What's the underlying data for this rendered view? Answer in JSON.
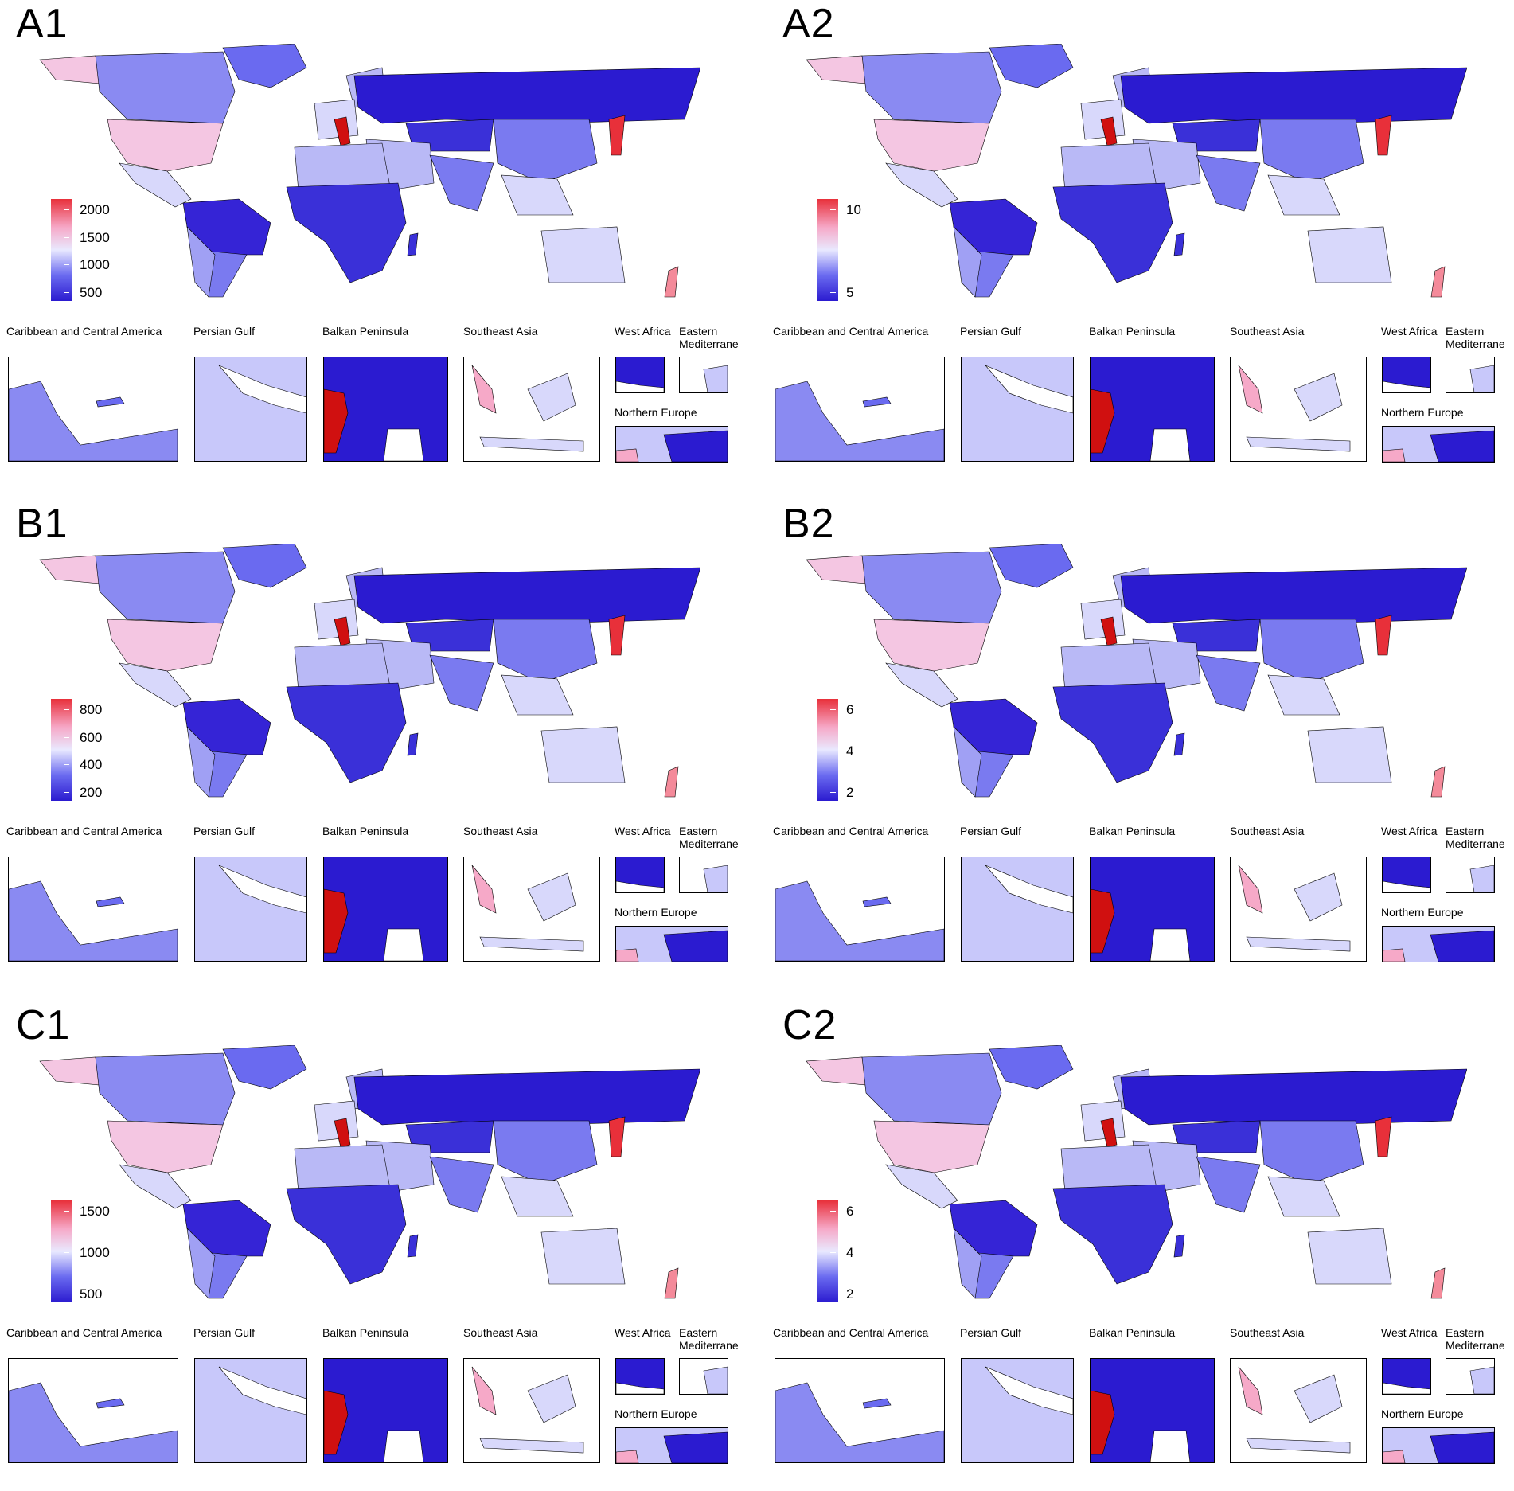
{
  "panels": [
    {
      "label": "A1",
      "ticks": [
        "2000",
        "1500",
        "1000",
        "500"
      ]
    },
    {
      "label": "A2",
      "ticks": [
        "10",
        "5"
      ]
    },
    {
      "label": "B1",
      "ticks": [
        "800",
        "600",
        "400",
        "200"
      ]
    },
    {
      "label": "B2",
      "ticks": [
        "6",
        "4",
        "2"
      ]
    },
    {
      "label": "C1",
      "ticks": [
        "1500",
        "1000",
        "500"
      ]
    },
    {
      "label": "C2",
      "ticks": [
        "6",
        "4",
        "2"
      ]
    }
  ],
  "insets": {
    "caribbean": "Caribbean and Central America",
    "persian_gulf": "Persian Gulf",
    "balkan": "Balkan Peninsula",
    "southeast_asia": "Southeast Asia",
    "west_africa": "West Africa",
    "eastern_med_1": "Eastern",
    "eastern_med_2": "Mediterrane",
    "northern_europe": "Northern Europe"
  },
  "colors": {
    "low": "#2b1bd0",
    "mid_low": "#6a6af0",
    "mid": "#e9e9ff",
    "mid_high": "#f6a9c8",
    "high": "#e8303a",
    "max": "#d01010"
  }
}
